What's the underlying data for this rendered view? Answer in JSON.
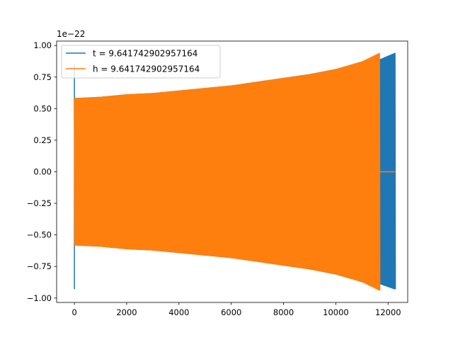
{
  "chart_data": {
    "type": "line",
    "title": "",
    "xlabel": "",
    "ylabel": "",
    "y_offset_label": "1e−22",
    "xlim": [
      -680,
      12750
    ],
    "ylim": [
      -1.035,
      1.035
    ],
    "x_ticks": [
      0,
      2000,
      4000,
      6000,
      8000,
      10000,
      12000
    ],
    "x_tick_labels": [
      "0",
      "2000",
      "4000",
      "6000",
      "8000",
      "10000",
      "12000"
    ],
    "y_ticks": [
      -1.0,
      -0.75,
      -0.5,
      -0.25,
      0.0,
      0.25,
      0.5,
      0.75,
      1.0
    ],
    "y_tick_labels": [
      "−1.00",
      "−0.75",
      "−0.50",
      "−0.25",
      "0.00",
      "0.25",
      "0.50",
      "0.75",
      "1.00"
    ],
    "grid": false,
    "legend_position": "top-left",
    "series": [
      {
        "name": "t = 9.641742902957164",
        "color": "#1f77b4",
        "x_range": [
          0,
          12280
        ],
        "envelope": {
          "x": [
            0,
            1000,
            2000,
            3000,
            4000,
            5000,
            6000,
            7000,
            8000,
            9000,
            10000,
            11000,
            11600,
            12280
          ],
          "upper": [
            0.58,
            0.59,
            0.61,
            0.62,
            0.64,
            0.66,
            0.68,
            0.71,
            0.74,
            0.77,
            0.81,
            0.87,
            0.88,
            0.94
          ],
          "lower": [
            -0.58,
            -0.59,
            -0.61,
            -0.62,
            -0.64,
            -0.66,
            -0.68,
            -0.71,
            -0.74,
            -0.77,
            -0.81,
            -0.87,
            -0.88,
            -0.93
          ]
        },
        "initial_spike": {
          "x": 0,
          "max": 0.85,
          "min": -0.93
        }
      },
      {
        "name": "h = 9.641742902957164",
        "color": "#ff7f0e",
        "x_range": [
          0,
          11690
        ],
        "envelope": {
          "x": [
            0,
            1000,
            2000,
            3000,
            4000,
            5000,
            6000,
            7000,
            8000,
            9000,
            10000,
            11000,
            11690
          ],
          "upper": [
            0.58,
            0.59,
            0.61,
            0.62,
            0.64,
            0.66,
            0.68,
            0.71,
            0.74,
            0.77,
            0.81,
            0.87,
            0.94
          ],
          "lower": [
            -0.58,
            -0.59,
            -0.61,
            -0.62,
            -0.64,
            -0.66,
            -0.68,
            -0.71,
            -0.74,
            -0.77,
            -0.81,
            -0.87,
            -0.94
          ]
        },
        "flat_tail": {
          "x": [
            11690,
            12280
          ],
          "y": 0.0
        }
      }
    ]
  }
}
